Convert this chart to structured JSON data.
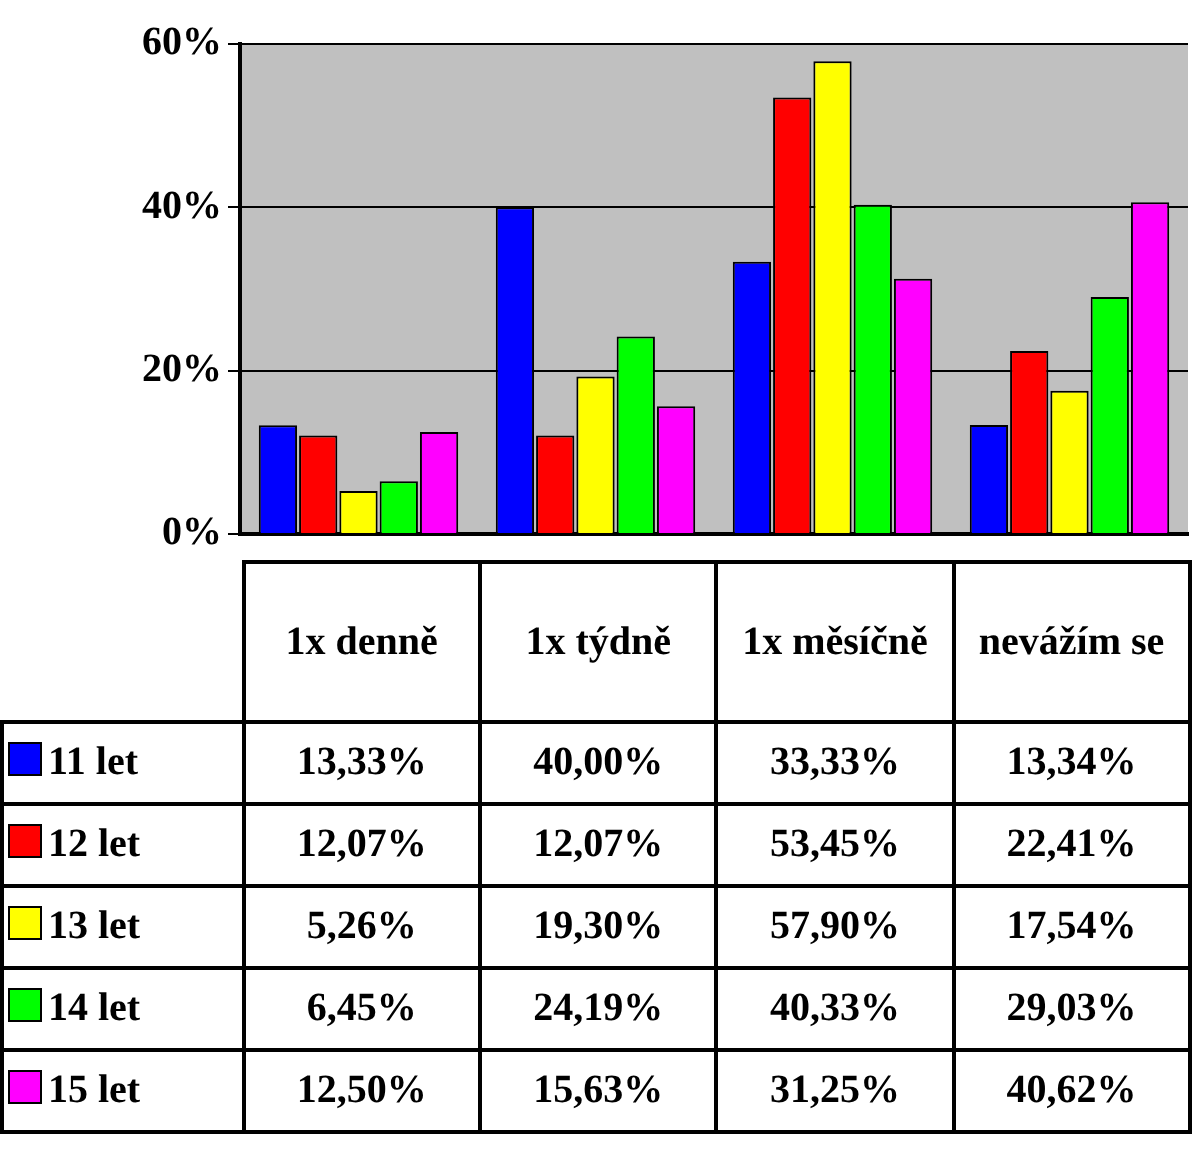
{
  "chart_data": {
    "type": "bar",
    "categories": [
      "1x denně",
      "1x týdně",
      "1x měsíčně",
      "nevážím se"
    ],
    "series": [
      {
        "name": "11 let",
        "color": "#0000ff",
        "values": [
          13.33,
          40.0,
          33.33,
          13.34
        ],
        "value_labels": [
          "13,33%",
          "40,00%",
          "33,33%",
          "13,34%"
        ]
      },
      {
        "name": "12 let",
        "color": "#ff0000",
        "values": [
          12.07,
          12.07,
          53.45,
          22.41
        ],
        "value_labels": [
          "12,07%",
          "12,07%",
          "53,45%",
          "22,41%"
        ]
      },
      {
        "name": "13 let",
        "color": "#ffff00",
        "values": [
          5.26,
          19.3,
          57.9,
          17.54
        ],
        "value_labels": [
          "5,26%",
          "19,30%",
          "57,90%",
          "17,54%"
        ]
      },
      {
        "name": "14 let",
        "color": "#00ff00",
        "values": [
          6.45,
          24.19,
          40.33,
          29.03
        ],
        "value_labels": [
          "6,45%",
          "24,19%",
          "40,33%",
          "29,03%"
        ]
      },
      {
        "name": "15 let",
        "color": "#ff00ff",
        "values": [
          12.5,
          15.63,
          31.25,
          40.62
        ],
        "value_labels": [
          "12,50%",
          "15,63%",
          "31,25%",
          "40,62%"
        ]
      }
    ],
    "ylim": [
      0,
      60
    ],
    "yticks": [
      {
        "value": 0,
        "label": "0%"
      },
      {
        "value": 20,
        "label": "20%"
      },
      {
        "value": 40,
        "label": "40%"
      },
      {
        "value": 60,
        "label": "60%"
      }
    ],
    "grid": "y",
    "legend": "bottom"
  }
}
